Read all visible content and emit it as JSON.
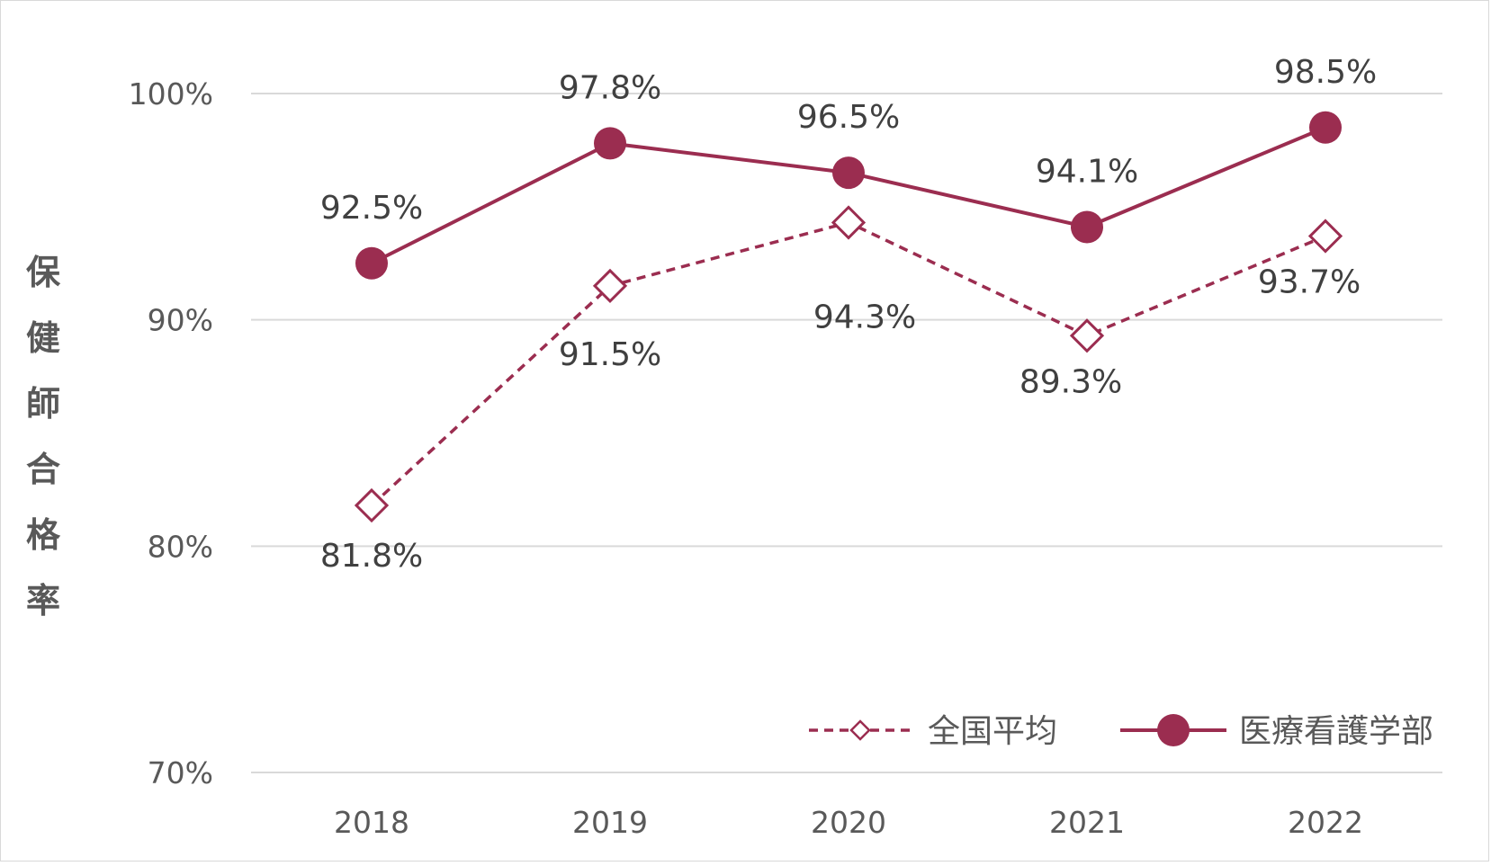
{
  "colors": {
    "series": "#9b2d50",
    "grid": "#d9d9d9",
    "text": "#595959"
  },
  "chart_data": {
    "type": "line",
    "title": "",
    "xlabel": "",
    "ylabel": "保健師合格率",
    "x": [
      "2018",
      "2019",
      "2020",
      "2021",
      "2022"
    ],
    "ylim": [
      70,
      100
    ],
    "y_ticks": [
      {
        "value": 100,
        "label": "100%"
      },
      {
        "value": 90,
        "label": "90%"
      },
      {
        "value": 80,
        "label": "80%"
      },
      {
        "value": 70,
        "label": "70%"
      }
    ],
    "grid": true,
    "legend_placement": "bottom-right",
    "series": [
      {
        "name": "全国平均",
        "style": "dashed",
        "marker": "hollow-diamond",
        "values": [
          81.8,
          91.5,
          94.3,
          89.3,
          93.7
        ],
        "labels": [
          "81.8%",
          "91.5%",
          "94.3%",
          "89.3%",
          "93.7%"
        ]
      },
      {
        "name": "医療看護学部",
        "style": "solid",
        "marker": "filled-circle",
        "values": [
          92.5,
          97.8,
          96.5,
          94.1,
          98.5
        ],
        "labels": [
          "92.5%",
          "97.8%",
          "96.5%",
          "94.1%",
          "98.5%"
        ]
      }
    ]
  }
}
